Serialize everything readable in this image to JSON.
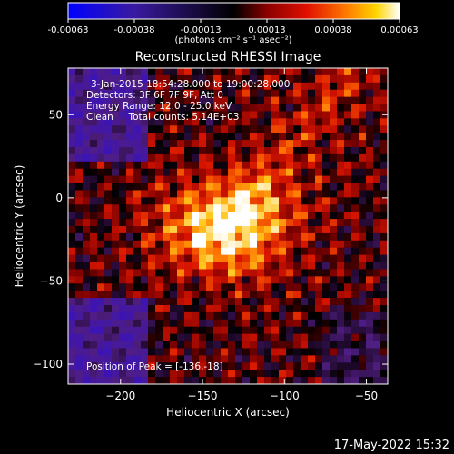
{
  "colorbar": {
    "ticks": [
      "-0.00063",
      "-0.00038",
      "-0.00013",
      "0.00013",
      "0.00038",
      "0.00063"
    ],
    "unit_label": "(photons cm⁻² s⁻¹ asec⁻²)"
  },
  "chart_data": {
    "type": "heatmap",
    "title": "Reconstructed RHESSI Image",
    "xlabel": "Heliocentric X (arcsec)",
    "ylabel": "Heliocentric Y (arcsec)",
    "xlim": [
      -232,
      -37
    ],
    "ylim": [
      -112,
      78
    ],
    "x_ticks": [
      -200,
      -150,
      -100,
      -50
    ],
    "y_ticks": [
      50,
      0,
      -50,
      -100
    ],
    "x_tick_labels": [
      "−200",
      "−150",
      "−100",
      "−50"
    ],
    "y_tick_labels": [
      "50",
      "0",
      "−50",
      "−100"
    ],
    "colormap": "blue-purple-black-red-orange-yellow-white",
    "color_range": [
      -0.00063,
      0.00063
    ],
    "annotations": [
      "3-Jan-2015 18:54:28.000 to 19:00:28.000",
      "Detectors: 3F 6F 7F 9F, Att 0",
      "Energy Range: 12.0 - 25.0 keV",
      "Clean     Total counts: 5.14E+03"
    ],
    "peak_label": "Position of Peak = [-136,-18]",
    "peak": [
      -136,
      -18
    ]
  },
  "timestamp": "17-May-2022 15:32"
}
